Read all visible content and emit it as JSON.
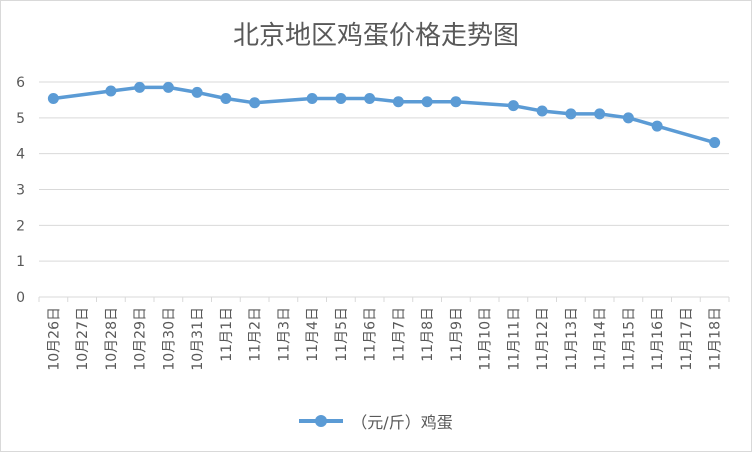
{
  "chart_data": {
    "type": "line",
    "title": "北京地区鸡蛋价格走势图",
    "xlabel": "",
    "ylabel": "",
    "ylim": [
      0,
      6
    ],
    "yticks": [
      0,
      1,
      2,
      3,
      4,
      5,
      6
    ],
    "grid": true,
    "legend_position": "bottom",
    "series_color": "#5B9BD5",
    "gridline_color": "#d9d9d9",
    "text_color": "#595959",
    "categories": [
      "10月26日",
      "10月27日",
      "10月28日",
      "10月29日",
      "10月30日",
      "10月31日",
      "11月1日",
      "11月2日",
      "11月3日",
      "11月4日",
      "11月5日",
      "11月6日",
      "11月7日",
      "11月8日",
      "11月9日",
      "11月10日",
      "11月11日",
      "11月12日",
      "11月13日",
      "11月14日",
      "11月15日",
      "11月16日",
      "11月17日",
      "11月18日"
    ],
    "series": [
      {
        "name": "（元/斤）鸡蛋",
        "values": [
          5.54,
          null,
          5.75,
          5.85,
          5.85,
          5.71,
          5.54,
          5.42,
          null,
          5.54,
          5.54,
          5.54,
          5.45,
          5.45,
          5.45,
          null,
          5.34,
          5.19,
          5.11,
          5.11,
          5.0,
          4.77,
          null,
          4.31
        ]
      }
    ]
  }
}
